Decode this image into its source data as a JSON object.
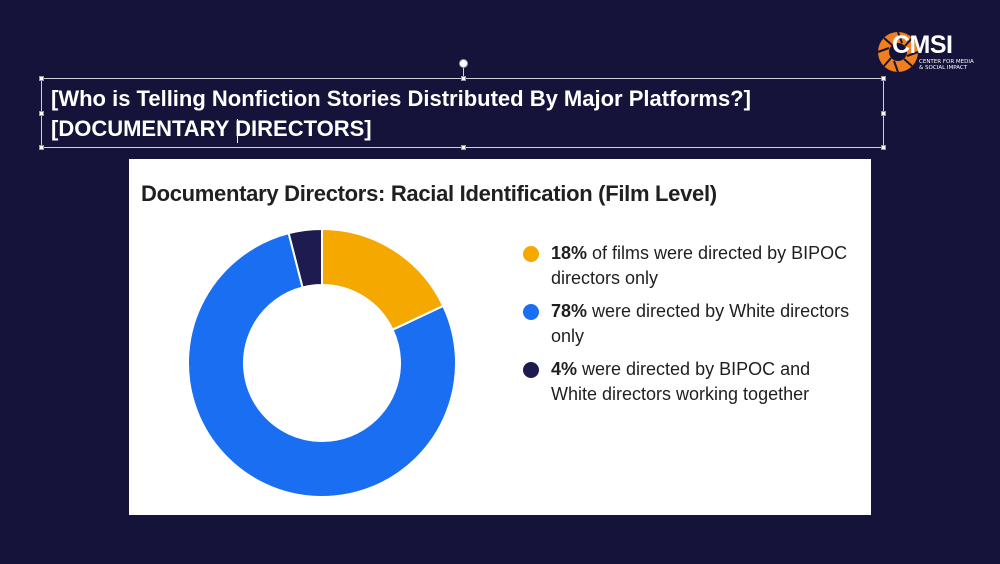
{
  "logo": {
    "text": "CMSI",
    "subtitle": "CENTER FOR MEDIA & SOCIAL IMPACT",
    "accent_color": "#f07f1d"
  },
  "title_box": {
    "line1": "[Who is Telling Nonfiction Stories Distributed By Major Platforms?]",
    "line2": "[DOCUMENTARY DIRECTORS]"
  },
  "chart_data": {
    "type": "pie",
    "variant": "donut",
    "title": "Documentary Directors: Racial Identification (Film Level)",
    "categories": [
      "films were directed by BIPOC directors only",
      "were directed by White directors only",
      "were directed by BIPOC and White directors working together"
    ],
    "values": [
      18,
      78,
      4
    ],
    "unit": "%",
    "colors": [
      "#f5a800",
      "#1a6ef2",
      "#1d1b4f"
    ],
    "legend_position": "right",
    "legend": [
      {
        "value": "18%",
        "text": " of films were directed by BIPOC directors only"
      },
      {
        "value": "78%",
        "text": " were directed by White directors only"
      },
      {
        "value": "4%",
        "text": " were directed by BIPOC and White directors working together"
      }
    ]
  }
}
